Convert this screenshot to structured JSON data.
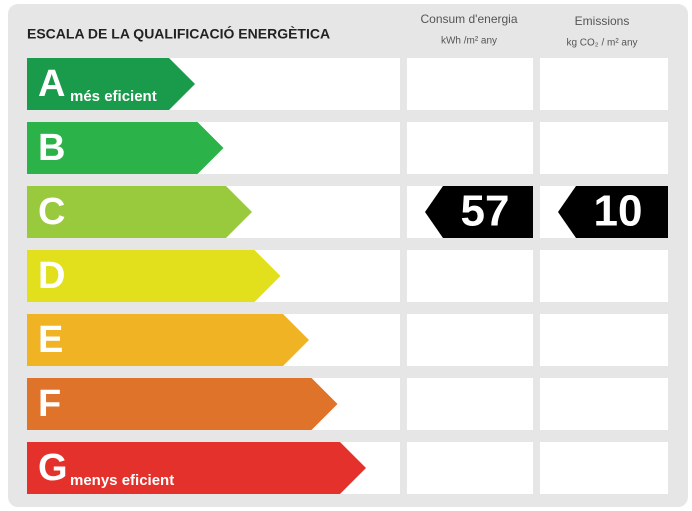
{
  "header": {
    "title": "ESCALA DE LA QUALIFICACIÓ ENERGÈTICA",
    "consum": {
      "label": "Consum d'energia",
      "unit": "kWh /m² any"
    },
    "emissions": {
      "label": "Emissions",
      "unit": "kg CO₂ / m² any"
    }
  },
  "rows": [
    {
      "letter": "A",
      "note": "més eficient",
      "color": "#1a9a4b"
    },
    {
      "letter": "B",
      "color": "#2bb34a"
    },
    {
      "letter": "C",
      "color": "#99c93c",
      "consum": 57,
      "emissions": 10
    },
    {
      "letter": "D",
      "color": "#e2e01c"
    },
    {
      "letter": "E",
      "color": "#efb324"
    },
    {
      "letter": "F",
      "color": "#e0732a"
    },
    {
      "letter": "G",
      "note": "menys eficient",
      "color": "#e4312b"
    }
  ]
}
